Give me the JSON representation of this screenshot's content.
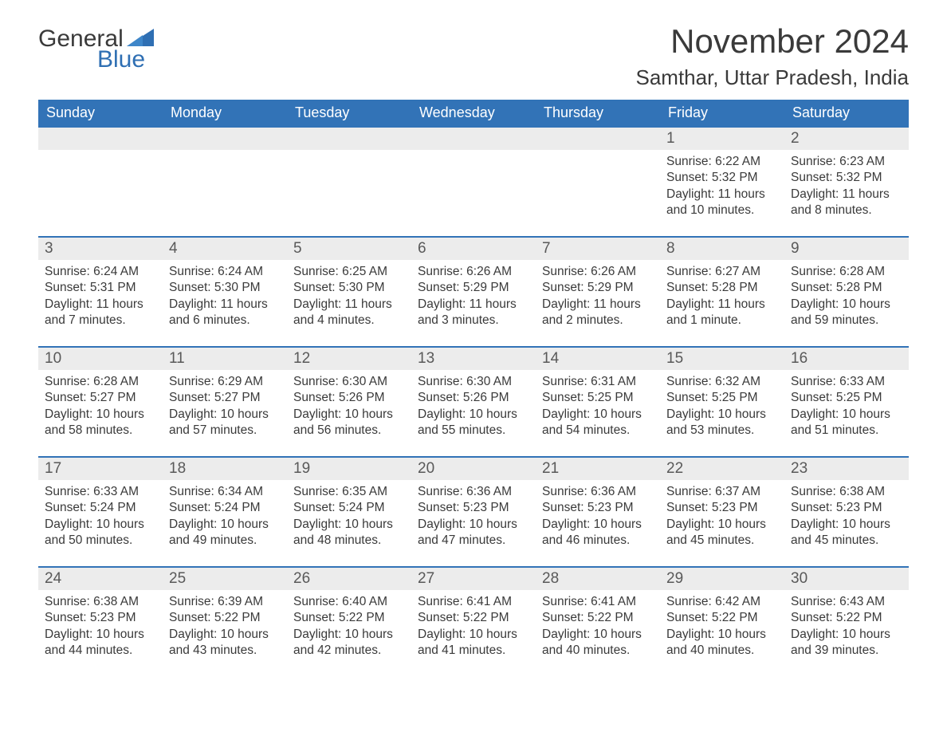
{
  "brand": {
    "word1": "General",
    "word2": "Blue"
  },
  "colors": {
    "header_bg": "#3273b7",
    "header_text": "#ffffff",
    "daynum_bg": "#ececec",
    "daynum_text": "#595959",
    "body_text": "#3a3a3a",
    "rule": "#3273b7",
    "brand_blue": "#2f6fb3"
  },
  "typography": {
    "month_title_fontsize": 42,
    "location_fontsize": 26,
    "dow_fontsize": 18,
    "daynum_fontsize": 19,
    "cell_fontsize": 15.5,
    "logo_fontsize": 30
  },
  "header": {
    "month_title": "November 2024",
    "location": "Samthar, Uttar Pradesh, India"
  },
  "calendar": {
    "type": "table",
    "columns": [
      "Sunday",
      "Monday",
      "Tuesday",
      "Wednesday",
      "Thursday",
      "Friday",
      "Saturday"
    ],
    "weeks": [
      [
        {
          "date": "",
          "sunrise": "",
          "sunset": "",
          "daylight": ""
        },
        {
          "date": "",
          "sunrise": "",
          "sunset": "",
          "daylight": ""
        },
        {
          "date": "",
          "sunrise": "",
          "sunset": "",
          "daylight": ""
        },
        {
          "date": "",
          "sunrise": "",
          "sunset": "",
          "daylight": ""
        },
        {
          "date": "",
          "sunrise": "",
          "sunset": "",
          "daylight": ""
        },
        {
          "date": "1",
          "sunrise": "Sunrise: 6:22 AM",
          "sunset": "Sunset: 5:32 PM",
          "daylight": "Daylight: 11 hours and 10 minutes."
        },
        {
          "date": "2",
          "sunrise": "Sunrise: 6:23 AM",
          "sunset": "Sunset: 5:32 PM",
          "daylight": "Daylight: 11 hours and 8 minutes."
        }
      ],
      [
        {
          "date": "3",
          "sunrise": "Sunrise: 6:24 AM",
          "sunset": "Sunset: 5:31 PM",
          "daylight": "Daylight: 11 hours and 7 minutes."
        },
        {
          "date": "4",
          "sunrise": "Sunrise: 6:24 AM",
          "sunset": "Sunset: 5:30 PM",
          "daylight": "Daylight: 11 hours and 6 minutes."
        },
        {
          "date": "5",
          "sunrise": "Sunrise: 6:25 AM",
          "sunset": "Sunset: 5:30 PM",
          "daylight": "Daylight: 11 hours and 4 minutes."
        },
        {
          "date": "6",
          "sunrise": "Sunrise: 6:26 AM",
          "sunset": "Sunset: 5:29 PM",
          "daylight": "Daylight: 11 hours and 3 minutes."
        },
        {
          "date": "7",
          "sunrise": "Sunrise: 6:26 AM",
          "sunset": "Sunset: 5:29 PM",
          "daylight": "Daylight: 11 hours and 2 minutes."
        },
        {
          "date": "8",
          "sunrise": "Sunrise: 6:27 AM",
          "sunset": "Sunset: 5:28 PM",
          "daylight": "Daylight: 11 hours and 1 minute."
        },
        {
          "date": "9",
          "sunrise": "Sunrise: 6:28 AM",
          "sunset": "Sunset: 5:28 PM",
          "daylight": "Daylight: 10 hours and 59 minutes."
        }
      ],
      [
        {
          "date": "10",
          "sunrise": "Sunrise: 6:28 AM",
          "sunset": "Sunset: 5:27 PM",
          "daylight": "Daylight: 10 hours and 58 minutes."
        },
        {
          "date": "11",
          "sunrise": "Sunrise: 6:29 AM",
          "sunset": "Sunset: 5:27 PM",
          "daylight": "Daylight: 10 hours and 57 minutes."
        },
        {
          "date": "12",
          "sunrise": "Sunrise: 6:30 AM",
          "sunset": "Sunset: 5:26 PM",
          "daylight": "Daylight: 10 hours and 56 minutes."
        },
        {
          "date": "13",
          "sunrise": "Sunrise: 6:30 AM",
          "sunset": "Sunset: 5:26 PM",
          "daylight": "Daylight: 10 hours and 55 minutes."
        },
        {
          "date": "14",
          "sunrise": "Sunrise: 6:31 AM",
          "sunset": "Sunset: 5:25 PM",
          "daylight": "Daylight: 10 hours and 54 minutes."
        },
        {
          "date": "15",
          "sunrise": "Sunrise: 6:32 AM",
          "sunset": "Sunset: 5:25 PM",
          "daylight": "Daylight: 10 hours and 53 minutes."
        },
        {
          "date": "16",
          "sunrise": "Sunrise: 6:33 AM",
          "sunset": "Sunset: 5:25 PM",
          "daylight": "Daylight: 10 hours and 51 minutes."
        }
      ],
      [
        {
          "date": "17",
          "sunrise": "Sunrise: 6:33 AM",
          "sunset": "Sunset: 5:24 PM",
          "daylight": "Daylight: 10 hours and 50 minutes."
        },
        {
          "date": "18",
          "sunrise": "Sunrise: 6:34 AM",
          "sunset": "Sunset: 5:24 PM",
          "daylight": "Daylight: 10 hours and 49 minutes."
        },
        {
          "date": "19",
          "sunrise": "Sunrise: 6:35 AM",
          "sunset": "Sunset: 5:24 PM",
          "daylight": "Daylight: 10 hours and 48 minutes."
        },
        {
          "date": "20",
          "sunrise": "Sunrise: 6:36 AM",
          "sunset": "Sunset: 5:23 PM",
          "daylight": "Daylight: 10 hours and 47 minutes."
        },
        {
          "date": "21",
          "sunrise": "Sunrise: 6:36 AM",
          "sunset": "Sunset: 5:23 PM",
          "daylight": "Daylight: 10 hours and 46 minutes."
        },
        {
          "date": "22",
          "sunrise": "Sunrise: 6:37 AM",
          "sunset": "Sunset: 5:23 PM",
          "daylight": "Daylight: 10 hours and 45 minutes."
        },
        {
          "date": "23",
          "sunrise": "Sunrise: 6:38 AM",
          "sunset": "Sunset: 5:23 PM",
          "daylight": "Daylight: 10 hours and 45 minutes."
        }
      ],
      [
        {
          "date": "24",
          "sunrise": "Sunrise: 6:38 AM",
          "sunset": "Sunset: 5:23 PM",
          "daylight": "Daylight: 10 hours and 44 minutes."
        },
        {
          "date": "25",
          "sunrise": "Sunrise: 6:39 AM",
          "sunset": "Sunset: 5:22 PM",
          "daylight": "Daylight: 10 hours and 43 minutes."
        },
        {
          "date": "26",
          "sunrise": "Sunrise: 6:40 AM",
          "sunset": "Sunset: 5:22 PM",
          "daylight": "Daylight: 10 hours and 42 minutes."
        },
        {
          "date": "27",
          "sunrise": "Sunrise: 6:41 AM",
          "sunset": "Sunset: 5:22 PM",
          "daylight": "Daylight: 10 hours and 41 minutes."
        },
        {
          "date": "28",
          "sunrise": "Sunrise: 6:41 AM",
          "sunset": "Sunset: 5:22 PM",
          "daylight": "Daylight: 10 hours and 40 minutes."
        },
        {
          "date": "29",
          "sunrise": "Sunrise: 6:42 AM",
          "sunset": "Sunset: 5:22 PM",
          "daylight": "Daylight: 10 hours and 40 minutes."
        },
        {
          "date": "30",
          "sunrise": "Sunrise: 6:43 AM",
          "sunset": "Sunset: 5:22 PM",
          "daylight": "Daylight: 10 hours and 39 minutes."
        }
      ]
    ]
  }
}
